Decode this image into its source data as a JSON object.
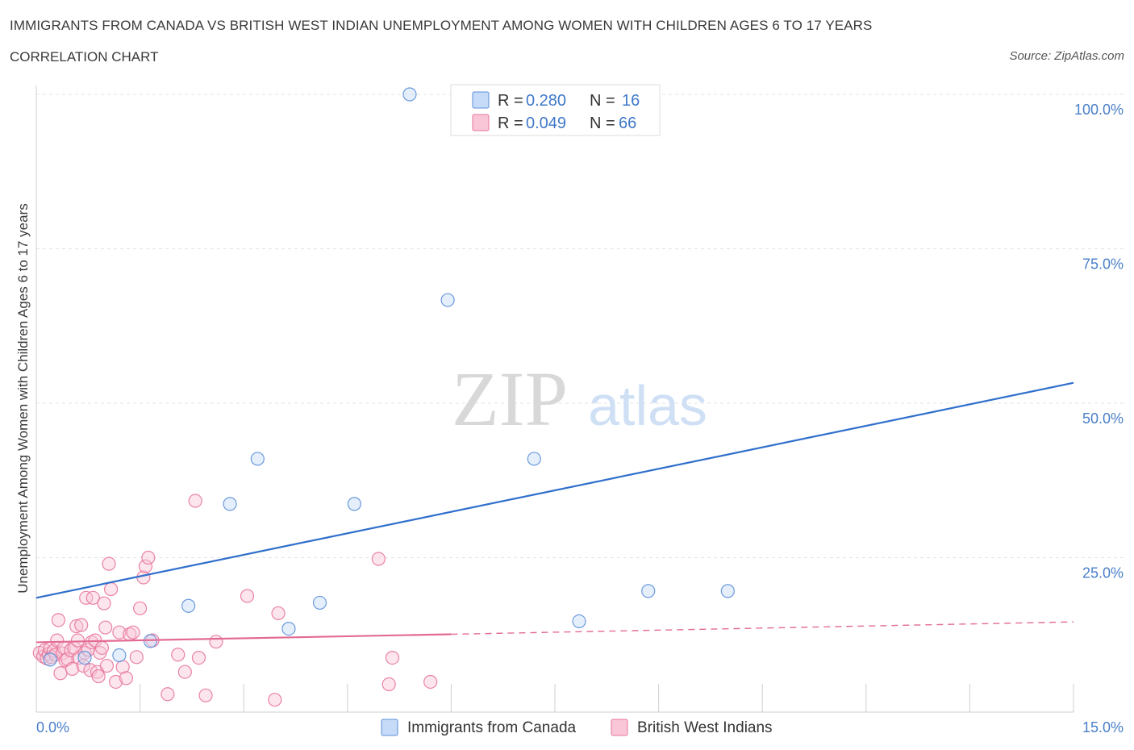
{
  "header": {
    "title": "IMMIGRANTS FROM CANADA VS BRITISH WEST INDIAN UNEMPLOYMENT AMONG WOMEN WITH CHILDREN AGES 6 TO 17 YEARS",
    "subtitle": "CORRELATION CHART",
    "source": "Source: ZipAtlas.com"
  },
  "watermark": {
    "zip": "ZIP",
    "atlas": "atlas"
  },
  "legend": {
    "r_label": "R =",
    "n_label": "N =",
    "rows": [
      {
        "r": "0.280",
        "n": "16"
      },
      {
        "r": "0.049",
        "n": "66"
      }
    ]
  },
  "colors": {
    "canada": "#5b8fd8",
    "canada_fill": "#c6dbf7",
    "bwi": "#e8779b",
    "bwi_fill": "#f8c6d6",
    "canada_line": "#2f6fcc",
    "bwi_line": "#e36b93",
    "tick_text": "#4a7fc9",
    "grid": "#e3e3e3"
  },
  "chart_data": {
    "type": "scatter",
    "xlabel": "",
    "ylabel": "Unemployment Among Women with Children Ages 6 to 17 years",
    "xlim": [
      0,
      15
    ],
    "ylim": [
      0,
      100
    ],
    "x_tick_labels": [
      "0.0%",
      "15.0%"
    ],
    "y_ticks": [
      25,
      50,
      75,
      100
    ],
    "y_tick_labels": [
      "25.0%",
      "50.0%",
      "75.0%",
      "100.0%"
    ],
    "grid": true,
    "legend_position": "top-center",
    "series": [
      {
        "name": "Immigrants from Canada",
        "points": [
          [
            0.2,
            8.5
          ],
          [
            0.7,
            8.8
          ],
          [
            1.2,
            9.2
          ],
          [
            1.65,
            11.5
          ],
          [
            2.2,
            17.2
          ],
          [
            2.8,
            33.7
          ],
          [
            3.2,
            41.0
          ],
          [
            3.65,
            13.5
          ],
          [
            4.1,
            17.7
          ],
          [
            4.6,
            33.7
          ],
          [
            5.4,
            100.0
          ],
          [
            5.95,
            66.7
          ],
          [
            7.2,
            41.0
          ],
          [
            7.85,
            14.7
          ],
          [
            8.85,
            19.6
          ],
          [
            10.0,
            19.6
          ]
        ],
        "trend": {
          "x": [
            0,
            15
          ],
          "y": [
            18.5,
            53.3
          ]
        }
      },
      {
        "name": "British West Indians",
        "points": [
          [
            0.05,
            9.6
          ],
          [
            0.1,
            9.0
          ],
          [
            0.12,
            10.0
          ],
          [
            0.15,
            8.7
          ],
          [
            0.18,
            9.4
          ],
          [
            0.2,
            10.3
          ],
          [
            0.22,
            8.9
          ],
          [
            0.25,
            9.9
          ],
          [
            0.28,
            9.3
          ],
          [
            0.3,
            11.6
          ],
          [
            0.32,
            14.9
          ],
          [
            0.35,
            6.3
          ],
          [
            0.38,
            9.5
          ],
          [
            0.4,
            10.4
          ],
          [
            0.42,
            8.4
          ],
          [
            0.45,
            8.6
          ],
          [
            0.5,
            10.0
          ],
          [
            0.52,
            7.0
          ],
          [
            0.55,
            10.4
          ],
          [
            0.58,
            13.9
          ],
          [
            0.6,
            11.6
          ],
          [
            0.62,
            8.8
          ],
          [
            0.65,
            14.1
          ],
          [
            0.68,
            7.5
          ],
          [
            0.7,
            9.6
          ],
          [
            0.72,
            18.5
          ],
          [
            0.75,
            10.1
          ],
          [
            0.78,
            6.8
          ],
          [
            0.8,
            11.3
          ],
          [
            0.82,
            18.5
          ],
          [
            0.85,
            11.6
          ],
          [
            0.88,
            6.5
          ],
          [
            0.9,
            5.8
          ],
          [
            0.92,
            9.6
          ],
          [
            0.95,
            10.4
          ],
          [
            0.98,
            17.6
          ],
          [
            1.0,
            13.7
          ],
          [
            1.02,
            7.5
          ],
          [
            1.05,
            24.0
          ],
          [
            1.08,
            19.9
          ],
          [
            1.15,
            4.9
          ],
          [
            1.2,
            12.9
          ],
          [
            1.25,
            7.3
          ],
          [
            1.3,
            5.5
          ],
          [
            1.35,
            12.6
          ],
          [
            1.4,
            12.9
          ],
          [
            1.45,
            8.9
          ],
          [
            1.5,
            16.8
          ],
          [
            1.55,
            21.8
          ],
          [
            1.58,
            23.6
          ],
          [
            1.62,
            25.0
          ],
          [
            1.68,
            11.6
          ],
          [
            1.9,
            2.9
          ],
          [
            2.05,
            9.3
          ],
          [
            2.15,
            6.5
          ],
          [
            2.3,
            34.2
          ],
          [
            2.35,
            8.8
          ],
          [
            2.45,
            2.7
          ],
          [
            2.6,
            11.4
          ],
          [
            3.05,
            18.8
          ],
          [
            3.45,
            2.0
          ],
          [
            3.5,
            16.0
          ],
          [
            4.95,
            24.8
          ],
          [
            5.1,
            4.5
          ],
          [
            5.15,
            8.8
          ],
          [
            5.7,
            4.9
          ]
        ],
        "trend": {
          "x": [
            0,
            6.0
          ],
          "y": [
            11.3,
            12.6
          ]
        },
        "trend_dashed": {
          "x": [
            6.0,
            15
          ],
          "y": [
            12.6,
            14.6
          ]
        }
      }
    ]
  }
}
